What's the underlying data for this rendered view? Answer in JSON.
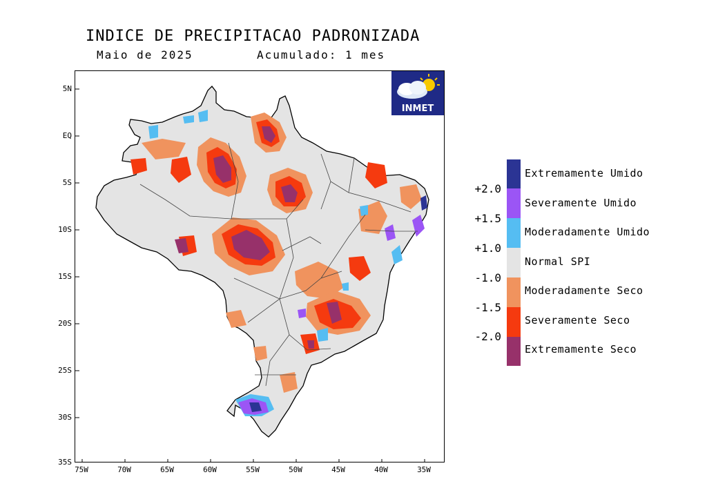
{
  "title": "INDICE DE PRECIPITACAO PADRONIZADA",
  "subtitle_left": "Maio de 2025",
  "subtitle_right": "Acumulado: 1 mes",
  "logo_text": "INMET",
  "y_ticks": [
    "5N",
    "EQ",
    "5S",
    "10S",
    "15S",
    "20S",
    "25S",
    "30S",
    "35S"
  ],
  "x_ticks": [
    "75W",
    "70W",
    "65W",
    "60W",
    "55W",
    "50W",
    "45W",
    "40W",
    "35W"
  ],
  "legend": {
    "categories": [
      {
        "label": "Extremamente Umido",
        "color": "#2b3494"
      },
      {
        "label": "Severamente Umido",
        "color": "#9b55f5"
      },
      {
        "label": "Moderadamente Umido",
        "color": "#55bdf2"
      },
      {
        "label": "Normal SPI",
        "color": "#e4e4e4"
      },
      {
        "label": "Moderadamente Seco",
        "color": "#f0935e"
      },
      {
        "label": "Severamente Seco",
        "color": "#f53a0f"
      },
      {
        "label": "Extremamente Seco",
        "color": "#97316a"
      }
    ],
    "thresholds": [
      "+2.0",
      "+1.5",
      "+1.0",
      "-1.0",
      "-1.5",
      "-2.0"
    ]
  },
  "colors": {
    "map_normal": "#e4e4e4",
    "logo_bg": "#1f2a86"
  }
}
